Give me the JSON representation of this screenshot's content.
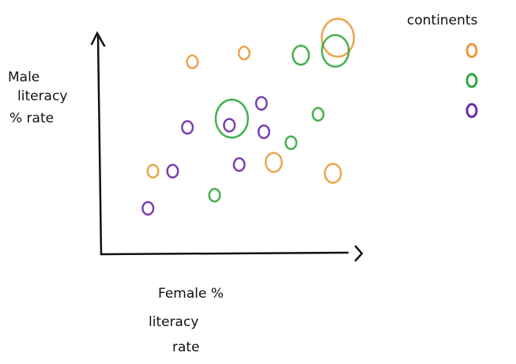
{
  "chart_data": {
    "type": "scatter",
    "x_label": [
      "Female %",
      "literacy",
      "rate"
    ],
    "y_label": [
      "Male",
      "literacy",
      "% rate"
    ],
    "legend_title": "continents",
    "xlim": [
      0,
      100
    ],
    "ylim": [
      0,
      100
    ],
    "series": [
      {
        "color": "#e99a3a",
        "x": [
          37,
          58,
          96,
          21,
          70,
          94
        ],
        "values": [
          88,
          92,
          99,
          38,
          42,
          37
        ],
        "sizes": [
          1,
          1,
          5,
          1,
          2,
          2
        ]
      },
      {
        "color": "#2fa83c",
        "x": [
          81,
          95,
          53,
          88,
          77,
          46
        ],
        "values": [
          91,
          93,
          62,
          64,
          51,
          27
        ],
        "sizes": [
          2,
          4,
          5,
          1,
          1,
          1
        ]
      },
      {
        "color": "#6b2ca3",
        "x": [
          65,
          35,
          52,
          66,
          29,
          56,
          19
        ],
        "values": [
          69,
          58,
          59,
          56,
          38,
          41,
          21
        ],
        "sizes": [
          1,
          1,
          1,
          1,
          1,
          1,
          1
        ]
      }
    ]
  }
}
